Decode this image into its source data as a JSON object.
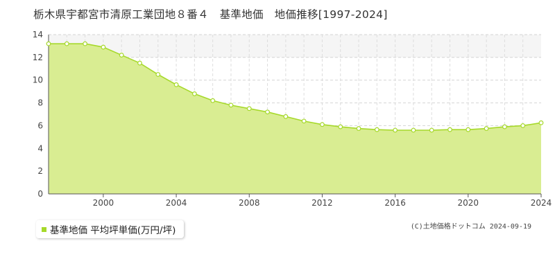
{
  "chart_data": {
    "type": "area",
    "title": "栃木県宇都宮市清原工業団地８番４　基準地価　地価推移[1997-2024]",
    "xlabel": "",
    "ylabel": "",
    "xlim": [
      1997,
      2024
    ],
    "ylim": [
      0,
      14
    ],
    "y_ticks": [
      0,
      2,
      4,
      6,
      8,
      10,
      12,
      14
    ],
    "x_ticks": [
      2000,
      2004,
      2008,
      2012,
      2016,
      2020,
      2024
    ],
    "grid": true,
    "legend_position": "bottom-left",
    "series": [
      {
        "name": "基準地価 平均坪単価(万円/坪)",
        "color": "#a6d92a",
        "fill": "#d9ed92",
        "x": [
          1997,
          1998,
          1999,
          2000,
          2001,
          2002,
          2003,
          2004,
          2005,
          2006,
          2007,
          2008,
          2009,
          2010,
          2011,
          2012,
          2013,
          2014,
          2015,
          2016,
          2017,
          2018,
          2019,
          2020,
          2021,
          2022,
          2023,
          2024
        ],
        "values": [
          13.2,
          13.2,
          13.2,
          12.9,
          12.2,
          11.5,
          10.5,
          9.6,
          8.8,
          8.2,
          7.8,
          7.5,
          7.2,
          6.8,
          6.4,
          6.1,
          5.9,
          5.75,
          5.65,
          5.6,
          5.6,
          5.6,
          5.65,
          5.65,
          5.75,
          5.9,
          6.0,
          6.25
        ]
      }
    ]
  },
  "legend": {
    "label": "基準地価 平均坪単価(万円/坪)"
  },
  "footer": {
    "copyright": "(C)土地価格ドットコム 2024-09-19"
  }
}
